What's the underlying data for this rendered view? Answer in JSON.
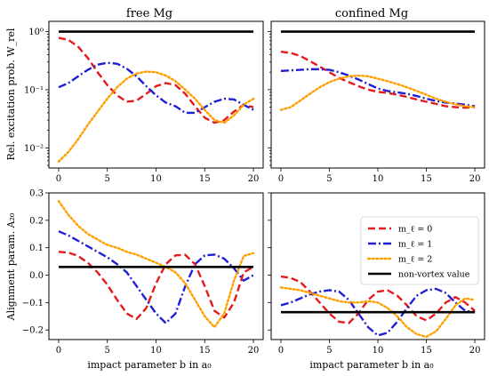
{
  "chart_data": {
    "type": "line",
    "column_titles": [
      "free Mg",
      "confined Mg"
    ],
    "xlabel": "impact parameter b in a₀",
    "xlim": [
      -1,
      21
    ],
    "xticks": [
      0,
      5,
      10,
      15,
      20
    ],
    "legend": {
      "placement": "bottom-right panel, top-right",
      "entries": [
        {
          "label": "m_ℓ = 0",
          "color": "#e41a1c",
          "style": "dashed"
        },
        {
          "label": "m_ℓ = 1",
          "color": "#1f1fd6",
          "style": "dashdot"
        },
        {
          "label": "m_ℓ = 2",
          "color": "#ff9f00",
          "style": "dotted"
        },
        {
          "label": "non-vortex value",
          "color": "#000000",
          "style": "solid"
        }
      ]
    },
    "rows": [
      {
        "ylabel": "Rel. excitation prob. W_rel",
        "yscale": "log",
        "ylim": [
          0.0045,
          1.5
        ],
        "yticks": [
          0.01,
          0.1,
          1
        ],
        "yticklabels": [
          "10⁻²",
          "10⁻¹",
          "10⁰"
        ]
      },
      {
        "ylabel": "Alignment param. A₂₀",
        "yscale": "linear",
        "ylim": [
          -0.235,
          0.3
        ],
        "yticks": [
          -0.2,
          -0.1,
          0.0,
          0.1,
          0.2,
          0.3
        ],
        "yticklabels": [
          "−0.2",
          "−0.1",
          "0.0",
          "0.1",
          "0.2",
          "0.3"
        ]
      }
    ],
    "panels": [
      {
        "row": 0,
        "col": 0,
        "series": [
          {
            "name": "m_ℓ = 0",
            "x": [
              0,
              1,
              2,
              3,
              4,
              5,
              6,
              7,
              8,
              9,
              10,
              11,
              12,
              13,
              14,
              15,
              16,
              17,
              18,
              19,
              20
            ],
            "y": [
              0.78,
              0.72,
              0.55,
              0.35,
              0.2,
              0.12,
              0.08,
              0.062,
              0.065,
              0.085,
              0.115,
              0.13,
              0.12,
              0.085,
              0.052,
              0.033,
              0.027,
              0.03,
              0.042,
              0.055,
              0.05
            ]
          },
          {
            "name": "m_ℓ = 1",
            "x": [
              0,
              1,
              2,
              3,
              4,
              5,
              6,
              7,
              8,
              9,
              10,
              11,
              12,
              13,
              14,
              15,
              16,
              17,
              18,
              19,
              20
            ],
            "y": [
              0.11,
              0.13,
              0.17,
              0.22,
              0.27,
              0.29,
              0.28,
              0.23,
              0.17,
              0.115,
              0.08,
              0.06,
              0.052,
              0.04,
              0.04,
              0.05,
              0.062,
              0.07,
              0.068,
              0.055,
              0.045
            ]
          },
          {
            "name": "m_ℓ = 2",
            "x": [
              0,
              1,
              2,
              3,
              4,
              5,
              6,
              7,
              8,
              9,
              10,
              11,
              12,
              13,
              14,
              15,
              16,
              17,
              18,
              19,
              20
            ],
            "y": [
              0.0058,
              0.0085,
              0.014,
              0.025,
              0.042,
              0.07,
              0.11,
              0.155,
              0.19,
              0.205,
              0.2,
              0.175,
              0.14,
              0.1,
              0.07,
              0.045,
              0.03,
              0.027,
              0.036,
              0.055,
              0.07
            ]
          },
          {
            "name": "non-vortex value",
            "x": [
              0,
              20
            ],
            "y": [
              1.0,
              1.0
            ]
          }
        ]
      },
      {
        "row": 0,
        "col": 1,
        "series": [
          {
            "name": "m_ℓ = 0",
            "x": [
              0,
              1,
              2,
              3,
              4,
              5,
              6,
              7,
              8,
              9,
              10,
              11,
              12,
              13,
              14,
              15,
              16,
              17,
              18,
              19,
              20
            ],
            "y": [
              0.45,
              0.43,
              0.38,
              0.31,
              0.25,
              0.2,
              0.16,
              0.135,
              0.115,
              0.1,
              0.092,
              0.088,
              0.082,
              0.075,
              0.068,
              0.062,
              0.057,
              0.052,
              0.05,
              0.049,
              0.05
            ]
          },
          {
            "name": "m_ℓ = 1",
            "x": [
              0,
              1,
              2,
              3,
              4,
              5,
              6,
              7,
              8,
              9,
              10,
              11,
              12,
              13,
              14,
              15,
              16,
              17,
              18,
              19,
              20
            ],
            "y": [
              0.21,
              0.215,
              0.22,
              0.225,
              0.225,
              0.22,
              0.2,
              0.175,
              0.15,
              0.125,
              0.105,
              0.095,
              0.09,
              0.085,
              0.078,
              0.07,
              0.064,
              0.06,
              0.058,
              0.055,
              0.052
            ]
          },
          {
            "name": "m_ℓ = 2",
            "x": [
              0,
              1,
              2,
              3,
              4,
              5,
              6,
              7,
              8,
              9,
              10,
              11,
              12,
              13,
              14,
              15,
              16,
              17,
              18,
              19,
              20
            ],
            "y": [
              0.045,
              0.05,
              0.065,
              0.085,
              0.11,
              0.135,
              0.155,
              0.17,
              0.175,
              0.17,
              0.155,
              0.14,
              0.125,
              0.11,
              0.095,
              0.082,
              0.07,
              0.062,
              0.056,
              0.052,
              0.05
            ]
          },
          {
            "name": "non-vortex value",
            "x": [
              0,
              20
            ],
            "y": [
              1.0,
              1.0
            ]
          }
        ]
      },
      {
        "row": 1,
        "col": 0,
        "series": [
          {
            "name": "m_ℓ = 0",
            "x": [
              0,
              1,
              2,
              3,
              4,
              5,
              6,
              7,
              8,
              9,
              10,
              11,
              12,
              13,
              14,
              15,
              16,
              17,
              18,
              19,
              20
            ],
            "y": [
              0.085,
              0.082,
              0.07,
              0.045,
              0.01,
              -0.035,
              -0.09,
              -0.14,
              -0.16,
              -0.12,
              -0.03,
              0.04,
              0.072,
              0.074,
              0.04,
              -0.04,
              -0.13,
              -0.155,
              -0.1,
              0.01,
              0.03
            ]
          },
          {
            "name": "m_ℓ = 1",
            "x": [
              0,
              1,
              2,
              3,
              4,
              5,
              6,
              7,
              8,
              9,
              10,
              11,
              12,
              13,
              14,
              15,
              16,
              17,
              18,
              19,
              20
            ],
            "y": [
              0.16,
              0.145,
              0.125,
              0.105,
              0.085,
              0.065,
              0.04,
              0.01,
              -0.04,
              -0.09,
              -0.14,
              -0.175,
              -0.14,
              -0.04,
              0.04,
              0.072,
              0.075,
              0.06,
              0.025,
              -0.02,
              0.0
            ]
          },
          {
            "name": "m_ℓ = 2",
            "x": [
              0,
              1,
              2,
              3,
              4,
              5,
              6,
              7,
              8,
              9,
              10,
              11,
              12,
              13,
              14,
              15,
              16,
              17,
              18,
              19,
              20
            ],
            "y": [
              0.27,
              0.22,
              0.18,
              0.15,
              0.13,
              0.11,
              0.1,
              0.085,
              0.075,
              0.06,
              0.045,
              0.03,
              0.01,
              -0.03,
              -0.09,
              -0.15,
              -0.19,
              -0.14,
              -0.02,
              0.07,
              0.08
            ]
          },
          {
            "name": "non-vortex value",
            "x": [
              0,
              20
            ],
            "y": [
              0.03,
              0.03
            ]
          }
        ]
      },
      {
        "row": 1,
        "col": 1,
        "series": [
          {
            "name": "m_ℓ = 0",
            "x": [
              0,
              1,
              2,
              3,
              4,
              5,
              6,
              7,
              8,
              9,
              10,
              11,
              12,
              13,
              14,
              15,
              16,
              17,
              18,
              19,
              20
            ],
            "y": [
              -0.005,
              -0.01,
              -0.025,
              -0.06,
              -0.1,
              -0.14,
              -0.17,
              -0.175,
              -0.14,
              -0.09,
              -0.06,
              -0.055,
              -0.075,
              -0.11,
              -0.15,
              -0.165,
              -0.14,
              -0.1,
              -0.08,
              -0.1,
              -0.13
            ]
          },
          {
            "name": "m_ℓ = 1",
            "x": [
              0,
              1,
              2,
              3,
              4,
              5,
              6,
              7,
              8,
              9,
              10,
              11,
              12,
              13,
              14,
              15,
              16,
              17,
              18,
              19,
              20
            ],
            "y": [
              -0.11,
              -0.1,
              -0.085,
              -0.07,
              -0.06,
              -0.055,
              -0.06,
              -0.09,
              -0.14,
              -0.19,
              -0.22,
              -0.21,
              -0.17,
              -0.12,
              -0.075,
              -0.055,
              -0.05,
              -0.065,
              -0.1,
              -0.13,
              -0.135
            ]
          },
          {
            "name": "m_ℓ = 2",
            "x": [
              0,
              1,
              2,
              3,
              4,
              5,
              6,
              7,
              8,
              9,
              10,
              11,
              12,
              13,
              14,
              15,
              16,
              17,
              18,
              19,
              20
            ],
            "y": [
              -0.045,
              -0.05,
              -0.055,
              -0.065,
              -0.075,
              -0.085,
              -0.095,
              -0.1,
              -0.1,
              -0.095,
              -0.1,
              -0.12,
              -0.15,
              -0.19,
              -0.215,
              -0.225,
              -0.205,
              -0.16,
              -0.11,
              -0.085,
              -0.09
            ]
          },
          {
            "name": "non-vortex value",
            "x": [
              0,
              20
            ],
            "y": [
              -0.135,
              -0.135
            ]
          }
        ]
      }
    ]
  }
}
